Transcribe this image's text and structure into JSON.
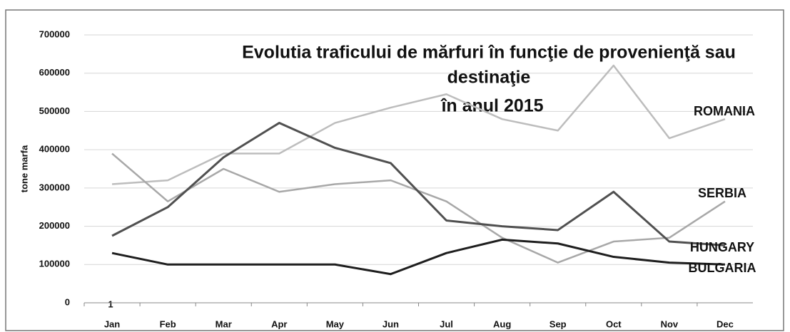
{
  "chart_data": {
    "type": "line",
    "title": [
      "Evolutia traficului de mărfuri în funcţie de provenienţă sau",
      "destinaţie",
      "în anul 2015"
    ],
    "y_label": "tone marfa",
    "annotation": "1",
    "categories": [
      "Jan",
      "Feb",
      "Mar",
      "Apr",
      "May",
      "Jun",
      "Jul",
      "Aug",
      "Sep",
      "Oct",
      "Nov",
      "Dec"
    ],
    "series": [
      {
        "name": "ROMANIA",
        "color": "#bdbdbd",
        "values": [
          310000,
          320000,
          390000,
          390000,
          470000,
          510000,
          545000,
          480000,
          450000,
          620000,
          430000,
          480000
        ]
      },
      {
        "name": "SERBIA",
        "color": "#a8a8a8",
        "values": [
          390000,
          265000,
          350000,
          290000,
          310000,
          320000,
          265000,
          170000,
          105000,
          160000,
          170000,
          265000
        ]
      },
      {
        "name": "HUNGARY",
        "color": "#505050",
        "values": [
          175000,
          250000,
          380000,
          470000,
          405000,
          365000,
          215000,
          200000,
          190000,
          290000,
          160000,
          150000
        ]
      },
      {
        "name": "BULGARIA",
        "color": "#1e1e1e",
        "values": [
          130000,
          100000,
          100000,
          100000,
          100000,
          75000,
          130000,
          165000,
          155000,
          120000,
          105000,
          100000
        ]
      }
    ],
    "ylim": [
      0,
      700000
    ],
    "yticks": [
      0,
      100000,
      200000,
      300000,
      400000,
      500000,
      600000,
      700000
    ],
    "grid": true,
    "legend": "inline-right"
  }
}
